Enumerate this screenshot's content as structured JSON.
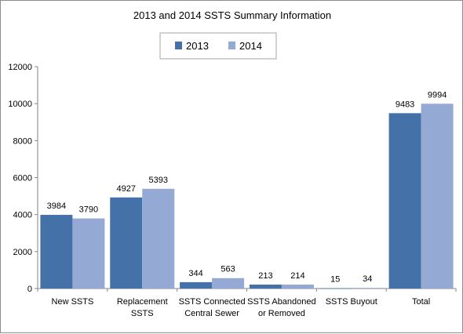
{
  "chart_data": {
    "type": "bar",
    "title": "2013 and 2014 SSTS Summary  Information",
    "xlabel": "",
    "ylabel": "",
    "categories": [
      [
        "New SSTS"
      ],
      [
        "Replacement",
        "SSTS"
      ],
      [
        "SSTS Connected",
        "Central Sewer"
      ],
      [
        "SSTS Abandoned",
        "or Removed"
      ],
      [
        "SSTS Buyout"
      ],
      [
        "Total"
      ]
    ],
    "series": [
      {
        "name": "2013",
        "color": "#4472a8",
        "values": [
          3984,
          4927,
          344,
          213,
          15,
          9483
        ]
      },
      {
        "name": "2014",
        "color": "#94aad4",
        "values": [
          3790,
          5393,
          563,
          214,
          34,
          9994
        ]
      }
    ],
    "ylim": [
      0,
      12000
    ],
    "yticks": [
      0,
      2000,
      4000,
      6000,
      8000,
      10000,
      12000
    ],
    "grid": false,
    "legend_position": "top-center",
    "axis_color": "#868686"
  }
}
